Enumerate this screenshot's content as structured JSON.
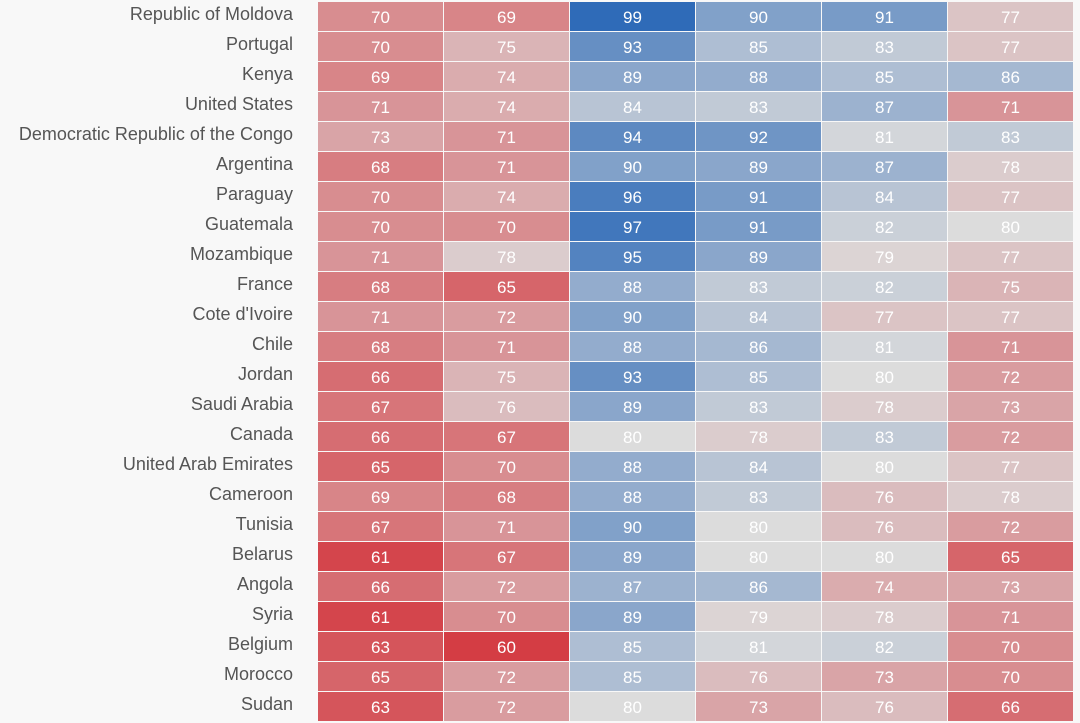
{
  "chart_data": {
    "type": "heatmap",
    "rows": [
      "Republic of Moldova",
      "Portugal",
      "Kenya",
      "United States",
      "Democratic Republic of the Congo",
      "Argentina",
      "Paraguay",
      "Guatemala",
      "Mozambique",
      "France",
      "Cote d'Ivoire",
      "Chile",
      "Jordan",
      "Saudi Arabia",
      "Canada",
      "United Arab Emirates",
      "Cameroon",
      "Tunisia",
      "Belarus",
      "Angola",
      "Syria",
      "Belgium",
      "Morocco",
      "Sudan"
    ],
    "values": [
      [
        70,
        69,
        99,
        90,
        91,
        77
      ],
      [
        70,
        75,
        93,
        85,
        83,
        77
      ],
      [
        69,
        74,
        89,
        88,
        85,
        86
      ],
      [
        71,
        74,
        84,
        83,
        87,
        71
      ],
      [
        73,
        71,
        94,
        92,
        81,
        83
      ],
      [
        68,
        71,
        90,
        89,
        87,
        78
      ],
      [
        70,
        74,
        96,
        91,
        84,
        77
      ],
      [
        70,
        70,
        97,
        91,
        82,
        80
      ],
      [
        71,
        78,
        95,
        89,
        79,
        77
      ],
      [
        68,
        65,
        88,
        83,
        82,
        75
      ],
      [
        71,
        72,
        90,
        84,
        77,
        77
      ],
      [
        68,
        71,
        88,
        86,
        81,
        71
      ],
      [
        66,
        75,
        93,
        85,
        80,
        72
      ],
      [
        67,
        76,
        89,
        83,
        78,
        73
      ],
      [
        66,
        67,
        80,
        78,
        83,
        72
      ],
      [
        65,
        70,
        88,
        84,
        80,
        77
      ],
      [
        69,
        68,
        88,
        83,
        76,
        78
      ],
      [
        67,
        71,
        90,
        80,
        76,
        72
      ],
      [
        61,
        67,
        89,
        80,
        80,
        65
      ],
      [
        66,
        72,
        87,
        86,
        74,
        73
      ],
      [
        61,
        70,
        89,
        79,
        78,
        71
      ],
      [
        63,
        60,
        85,
        81,
        82,
        70
      ],
      [
        65,
        72,
        85,
        76,
        73,
        70
      ],
      [
        63,
        72,
        80,
        73,
        76,
        66
      ]
    ],
    "color_scale": {
      "low": "#d43d44",
      "mid": "#dcdcdc",
      "high": "#2f6bb8"
    }
  }
}
